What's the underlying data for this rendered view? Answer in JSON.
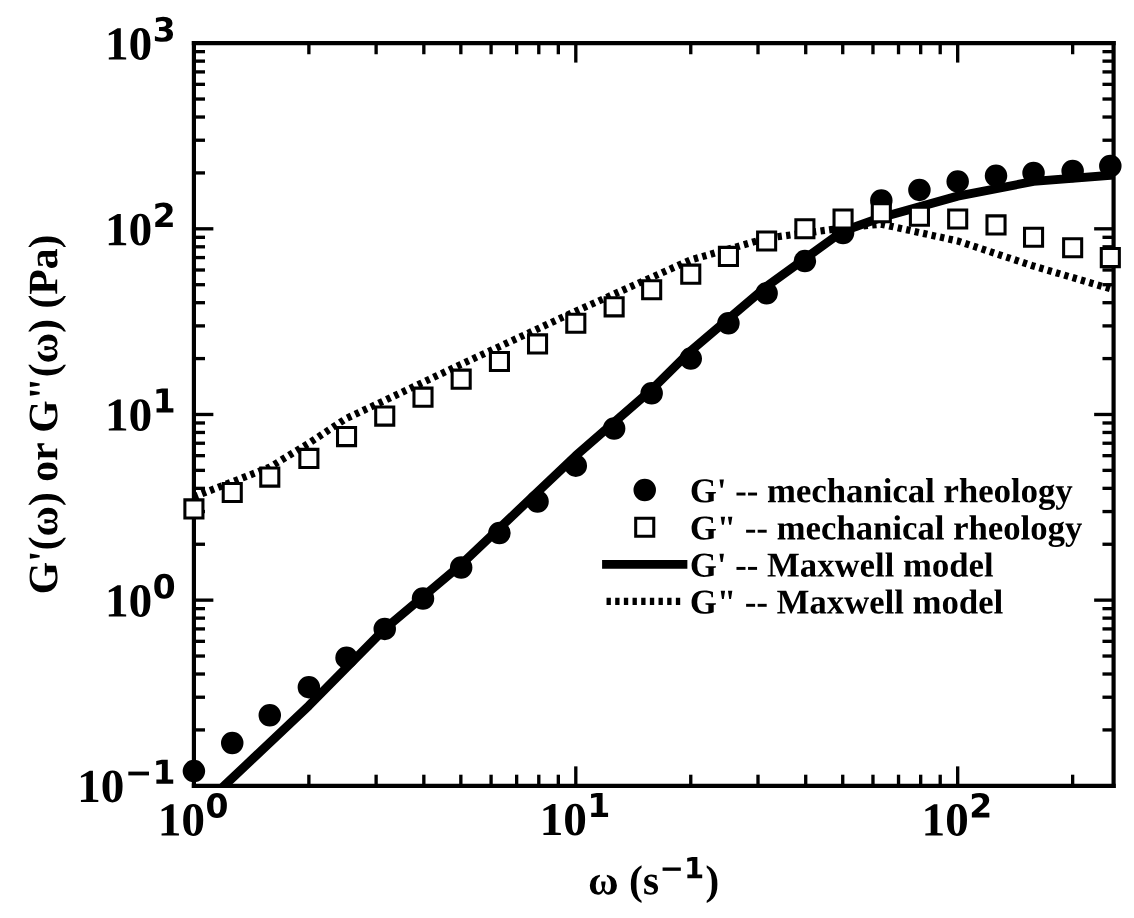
{
  "chart_data": {
    "type": "line",
    "xlabel": "ω (s$^{−1}$)",
    "ylabel": "G'(ω) or G\"(ω) (Pa)",
    "log": "xy",
    "xlim": [
      1,
      256
    ],
    "ylim": [
      0.1,
      1000
    ],
    "xticks": [
      {
        "value": 1,
        "label": "10$^{0}$"
      },
      {
        "value": 10,
        "label": "10$^{1}$"
      },
      {
        "value": 100,
        "label": "10$^{2}$"
      }
    ],
    "yticks": [
      {
        "value": 0.1,
        "label": "10$^{−1}$"
      },
      {
        "value": 1,
        "label": "10$^{0}$"
      },
      {
        "value": 10,
        "label": "10$^{1}$"
      },
      {
        "value": 100,
        "label": "10$^{2}$"
      },
      {
        "value": 1000,
        "label": "10$^{3}$"
      }
    ],
    "grid": false,
    "legend": "bottom right",
    "series": [
      {
        "name": "G' -- mechanical rheology",
        "type": "scatter",
        "marker": "circle",
        "color": "#000000",
        "x": [
          1,
          1.26,
          1.58,
          2,
          2.51,
          3.16,
          3.98,
          5.01,
          6.31,
          7.94,
          10,
          12.6,
          15.8,
          20,
          25.1,
          31.6,
          39.8,
          50.1,
          63.1,
          79.4,
          100,
          126,
          158,
          200,
          251
        ],
        "values": [
          0.12,
          0.17,
          0.24,
          0.34,
          0.49,
          0.7,
          1.02,
          1.5,
          2.3,
          3.4,
          5.3,
          8.4,
          13,
          20,
          31,
          45,
          67,
          95,
          142,
          162,
          180,
          193,
          200,
          205,
          218
        ]
      },
      {
        "name": "G\" -- mechanical rheology",
        "type": "scatter",
        "marker": "square",
        "color": "#000000",
        "x": [
          1,
          1.26,
          1.58,
          2,
          2.51,
          3.16,
          3.98,
          5.01,
          6.31,
          7.94,
          10,
          12.6,
          15.8,
          20,
          25.1,
          31.6,
          39.8,
          50.1,
          63.1,
          79.4,
          100,
          126,
          158,
          200,
          251
        ],
        "values": [
          3.1,
          3.8,
          4.6,
          5.8,
          7.6,
          9.8,
          12.4,
          15.5,
          19.3,
          24,
          31,
          38,
          47,
          57,
          71,
          86,
          100,
          113,
          122,
          117,
          113,
          105,
          90,
          79,
          70
        ]
      },
      {
        "name": "G' -- Maxwell model",
        "line_style": "solid",
        "color": "#000000",
        "x": [
          1.2,
          2,
          3.16,
          5,
          10,
          15.8,
          20,
          31.6,
          50,
          63,
          100,
          158,
          256
        ],
        "values": [
          0.1,
          0.27,
          0.7,
          1.55,
          6.0,
          13.6,
          22,
          49,
          97,
          115,
          150,
          180,
          195
        ]
      },
      {
        "name": "G\" -- Maxwell model",
        "line_style": "dotted",
        "color": "#000000",
        "x": [
          1,
          1.58,
          2,
          2.5,
          3.16,
          5,
          10,
          20,
          31.6,
          50,
          63,
          100,
          158,
          256
        ],
        "values": [
          3.6,
          5.2,
          7,
          9.5,
          11.9,
          18.6,
          36,
          68,
          89,
          101,
          106,
          86,
          63,
          47
        ]
      }
    ]
  }
}
